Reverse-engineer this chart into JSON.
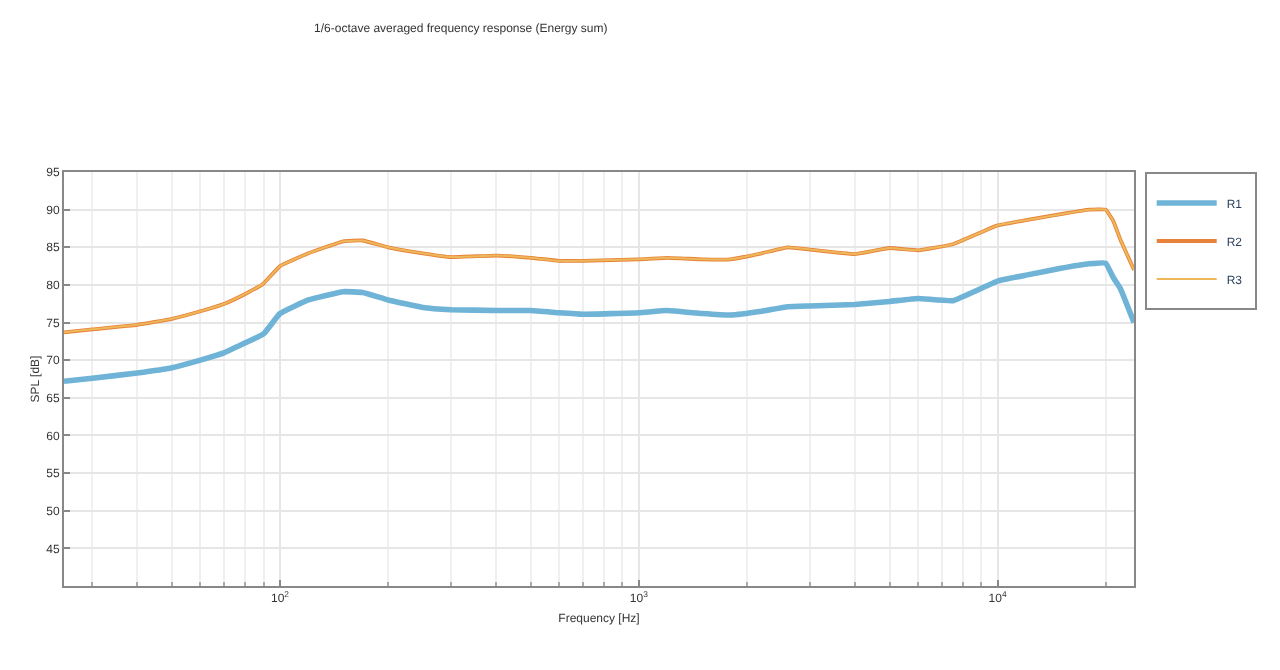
{
  "chart_data": {
    "type": "line",
    "title": "1/6-octave averaged frequency response (Energy sum)",
    "xlabel": "Frequency [Hz]",
    "ylabel": "SPL [dB]",
    "log": "x",
    "x": [
      25,
      30,
      40,
      50,
      60,
      70,
      80,
      90,
      100,
      120,
      150,
      170,
      200,
      250,
      300,
      400,
      500,
      600,
      700,
      1000,
      1200,
      1500,
      1800,
      2200,
      2600,
      3000,
      4000,
      5000,
      6000,
      7500,
      10000,
      12000,
      15000,
      18000,
      20000,
      21000,
      22000,
      24000
    ],
    "series": [
      {
        "name": "R1",
        "color": "#6fb3d6",
        "values": [
          67.2,
          67.6,
          68.3,
          69,
          70,
          71,
          72.3,
          73.5,
          76.2,
          78,
          79.1,
          79,
          78,
          77,
          76.7,
          76.6,
          76.6,
          76.3,
          76.1,
          76.3,
          76.6,
          76.2,
          76,
          76.5,
          77.1,
          77.2,
          77.4,
          77.8,
          78.2,
          77.9,
          80.5,
          81.3,
          82.2,
          82.8,
          82.9,
          81,
          79.5,
          75
        ]
      },
      {
        "name": "R2",
        "color": "#e8823a",
        "values": [
          73.7,
          74.1,
          74.7,
          75.5,
          76.5,
          77.5,
          78.8,
          80.2,
          82.5,
          84.2,
          85.8,
          85.9,
          85,
          84.2,
          83.7,
          83.9,
          83.6,
          83.2,
          83.2,
          83.4,
          83.6,
          83.4,
          83.4,
          84.2,
          85,
          84.7,
          84.1,
          84.9,
          84.6,
          85.4,
          87.9,
          88.6,
          89.4,
          90,
          90,
          88.5,
          86,
          82
        ]
      },
      {
        "name": "R3",
        "color": "#edb75a",
        "values": [
          73.7,
          74.1,
          74.7,
          75.5,
          76.5,
          77.5,
          78.8,
          80.2,
          82.5,
          84.2,
          85.8,
          85.9,
          85,
          84.2,
          83.7,
          83.9,
          83.6,
          83.2,
          83.2,
          83.4,
          83.6,
          83.4,
          83.4,
          84.2,
          85,
          84.7,
          84.1,
          84.9,
          84.6,
          85.4,
          87.9,
          88.6,
          89.4,
          90,
          90,
          88.5,
          86,
          82
        ]
      }
    ],
    "xlim": [
      25,
      24000
    ],
    "xticks": [
      {
        "value": 100,
        "label": "10$^{2}$"
      },
      {
        "value": 1000,
        "label": "10$^{3}$"
      },
      {
        "value": 10000,
        "label": "10$^{4}$"
      }
    ],
    "ylim": [
      40,
      95
    ],
    "yticks": [
      45,
      50,
      55,
      60,
      65,
      70,
      75,
      80,
      85,
      90,
      95
    ],
    "grid": true,
    "legend": "top right",
    "marker": "none",
    "line_style": "solid"
  }
}
